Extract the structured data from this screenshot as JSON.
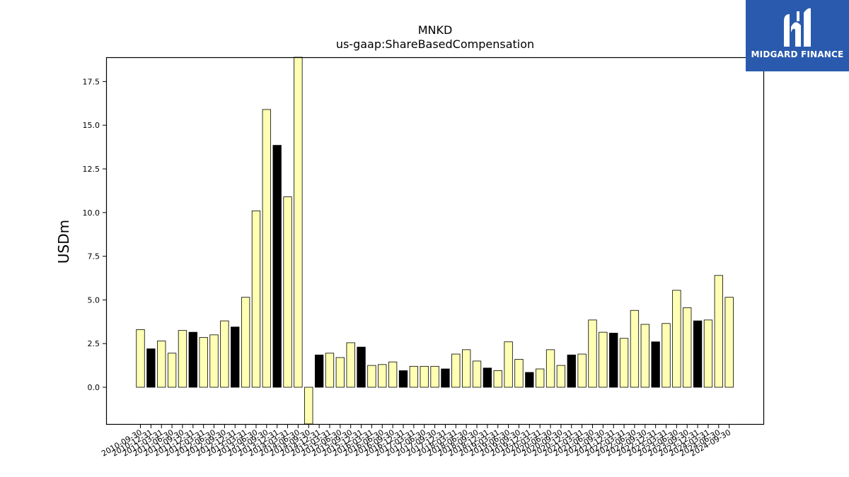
{
  "logo": {
    "text": "MIDGARD FINANCE",
    "icon": "midgard-logo-icon",
    "color": "#2a5aad"
  },
  "chart_data": {
    "type": "bar",
    "title": "MNKD",
    "subtitle": "us-gaap:ShareBasedCompensation",
    "ylabel": "USDm",
    "xlabel": "",
    "ylim": [
      -2.1,
      19.0
    ],
    "yticks": [
      "0.0",
      "2.5",
      "5.0",
      "7.5",
      "10.0",
      "12.5",
      "15.0",
      "17.5"
    ],
    "colors": {
      "quarter": "#ffffb3",
      "annual": "#000000",
      "edge": "#000000"
    },
    "categories": [
      "2010-09-30",
      "2010-12-31",
      "2011-03-31",
      "2011-06-30",
      "2011-09-30",
      "2011-12-31",
      "2012-03-31",
      "2012-06-30",
      "2012-09-30",
      "2012-12-31",
      "2013-03-31",
      "2013-06-30",
      "2013-09-30",
      "2013-12-31",
      "2014-03-31",
      "2014-06-30",
      "2014-09-30",
      "2014-12-31",
      "2015-03-31",
      "2015-06-30",
      "2015-09-30",
      "2015-12-31",
      "2016-03-31",
      "2016-06-30",
      "2016-09-30",
      "2016-12-31",
      "2017-03-31",
      "2017-06-30",
      "2017-09-30",
      "2017-12-31",
      "2018-03-31",
      "2018-06-30",
      "2018-09-30",
      "2018-12-31",
      "2019-03-31",
      "2019-06-30",
      "2019-09-30",
      "2019-12-31",
      "2020-03-31",
      "2020-06-30",
      "2020-09-30",
      "2020-12-31",
      "2021-03-31",
      "2021-06-30",
      "2021-09-30",
      "2021-12-31",
      "2022-03-31",
      "2022-06-30",
      "2022-09-30",
      "2022-12-31",
      "2023-03-31",
      "2023-06-30",
      "2023-09-30",
      "2023-12-31",
      "2024-03-31",
      "2024-06-30",
      "2024-09-30"
    ],
    "values": [
      3.3,
      2.2,
      2.65,
      1.95,
      3.25,
      3.15,
      2.85,
      3.0,
      3.8,
      3.45,
      5.15,
      10.1,
      15.9,
      13.85,
      10.9,
      19.0,
      -2.1,
      1.85,
      1.95,
      1.7,
      2.55,
      2.3,
      1.25,
      1.3,
      1.45,
      0.95,
      1.2,
      1.2,
      1.2,
      1.05,
      1.9,
      2.15,
      1.5,
      1.1,
      0.95,
      2.6,
      1.6,
      0.85,
      1.05,
      2.15,
      1.25,
      1.85,
      1.9,
      3.85,
      3.15,
      3.1,
      2.8,
      4.4,
      3.6,
      2.6,
      3.65,
      5.55,
      4.55,
      3.8,
      3.85,
      6.4,
      5.15
    ],
    "annual_flags": [
      0,
      1,
      0,
      0,
      0,
      1,
      0,
      0,
      0,
      1,
      0,
      0,
      0,
      1,
      0,
      0,
      0,
      1,
      0,
      0,
      0,
      1,
      0,
      0,
      0,
      1,
      0,
      0,
      0,
      1,
      0,
      0,
      0,
      1,
      0,
      0,
      0,
      1,
      0,
      0,
      0,
      1,
      0,
      0,
      0,
      1,
      0,
      0,
      0,
      1,
      0,
      0,
      0,
      1,
      0,
      0,
      0
    ],
    "grid": false,
    "legend": "none"
  }
}
